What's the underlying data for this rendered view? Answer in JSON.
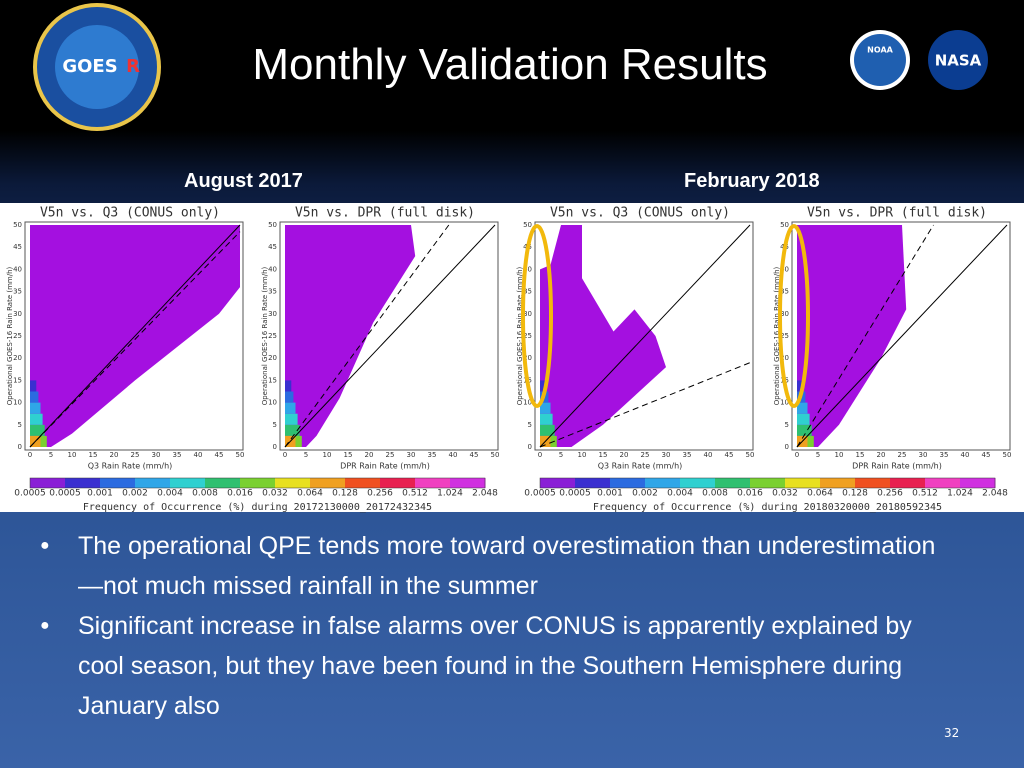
{
  "header": {
    "title": "Monthly Validation Results",
    "logos": [
      "GOES",
      "R",
      "NOAA",
      "NASA"
    ]
  },
  "columns": [
    {
      "label": "August 2017",
      "panels": [
        {
          "title": "V5n vs. Q3 (CONUS only)",
          "x_label": "Q3 Rain Rate (mm/h)",
          "y_label": "Operational GOES-16 Rain Rate (mm/h)"
        },
        {
          "title": "V5n vs. DPR (full disk)",
          "x_label": "DPR Rain Rate (mm/h)",
          "y_label": "Operational GOES-16 Rain Rate (mm/h)"
        }
      ],
      "colorbar": {
        "ticks": [
          "0.0005",
          "0.0005",
          "0.001",
          "0.002",
          "0.004",
          "0.008",
          "0.016",
          "0.032",
          "0.064",
          "0.128",
          "0.256",
          "0.512",
          "1.024",
          "2.048"
        ],
        "caption": "Frequency of Occurrence (%) during 20172130000_20172432345"
      }
    },
    {
      "label": "February 2018",
      "panels": [
        {
          "title": "V5n vs. Q3 (CONUS only)",
          "x_label": "Q3 Rain Rate (mm/h)",
          "y_label": "Operational GOES-16 Rain Rate (mm/h)"
        },
        {
          "title": "V5n vs. DPR (full disk)",
          "x_label": "DPR Rain Rate (mm/h)",
          "y_label": "Operational GOES-16 Rain Rate (mm/h)"
        }
      ],
      "colorbar": {
        "ticks": [
          "0.0005",
          "0.0005",
          "0.001",
          "0.002",
          "0.004",
          "0.008",
          "0.016",
          "0.032",
          "0.064",
          "0.128",
          "0.256",
          "0.512",
          "1.024",
          "2.048"
        ],
        "caption": "Frequency of Occurrence (%) during 20180320000_20180592345"
      }
    }
  ],
  "axis_ticks": [
    0,
    5,
    10,
    15,
    20,
    25,
    30,
    35,
    40,
    45,
    50
  ],
  "bullets": [
    "The operational QPE tends more toward overestimation than underestimation—not much missed rainfall in the summer",
    "Significant increase in false alarms over CONUS is apparently explained by cool season, but they have been found in the Southern Hemisphere during January also"
  ],
  "page_number": "32"
}
